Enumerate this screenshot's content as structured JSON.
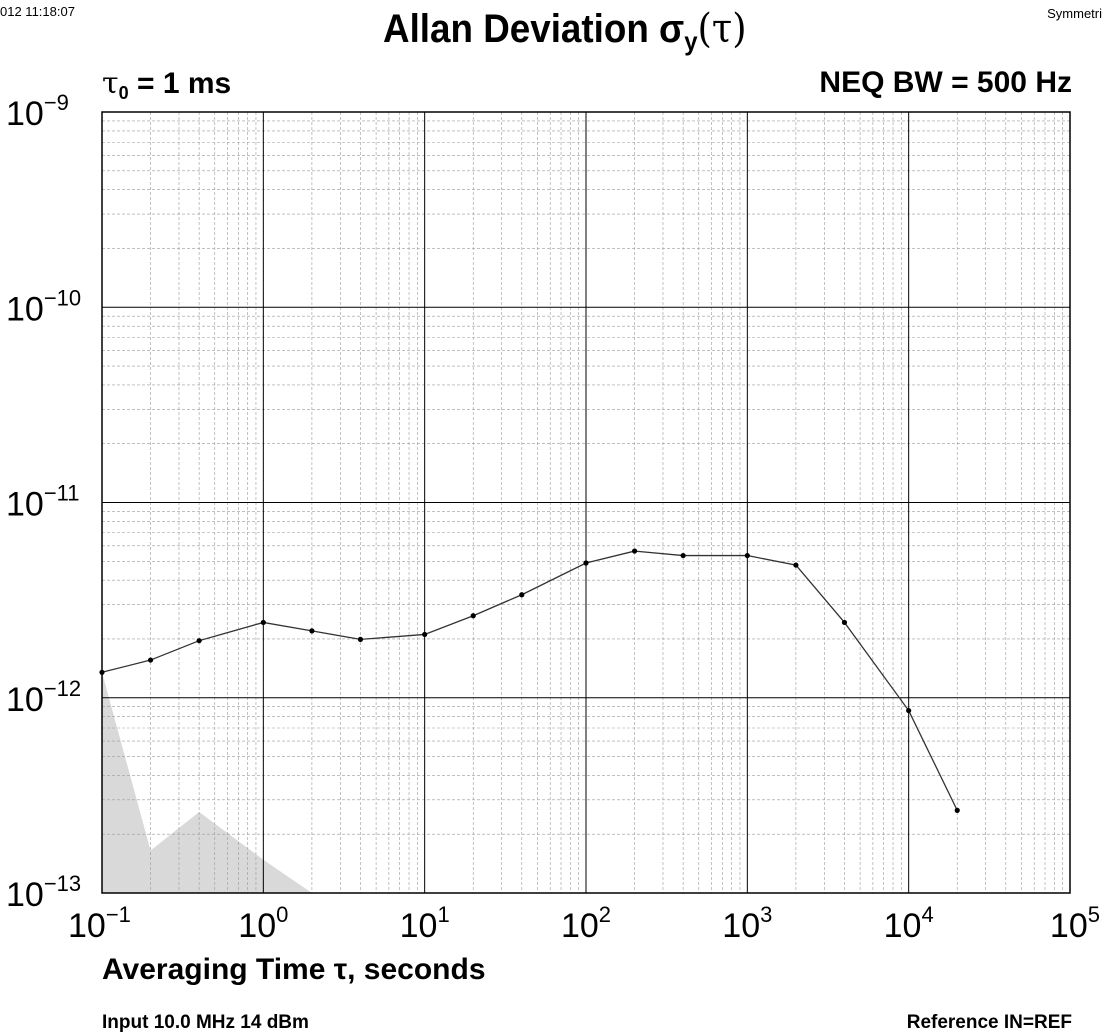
{
  "header": {
    "timestamp": "012 11:18:07",
    "vendor": "Symmetri",
    "title_main": "Allan Deviation σ",
    "title_sub": "y",
    "title_arg": "(τ)",
    "tau0_symbol": "τ",
    "tau0_sub": "0",
    "tau0_value": " = 1 ms",
    "neq_bw": "NEQ BW = 500 Hz"
  },
  "footer": {
    "xlabel": "Averaging Time τ, seconds",
    "input_info": "Input 10.0 MHz 14 dBm",
    "reference": "Reference IN=REF"
  },
  "colors": {
    "line": "#333333",
    "marker": "#000000",
    "confidence_fill": "#d9d9d9",
    "major_grid": "#000000",
    "minor_grid": "#9a9a9a"
  },
  "chart_data": {
    "type": "line",
    "title": "Allan Deviation σy(τ)",
    "xlabel": "Averaging Time τ, seconds",
    "ylabel": "",
    "x_scale": "log",
    "y_scale": "log",
    "xlim": [
      0.1,
      100000
    ],
    "ylim": [
      1e-13,
      1e-09
    ],
    "grid": true,
    "x_ticks": [
      {
        "value": 0.1,
        "base": "10",
        "exp": "−1"
      },
      {
        "value": 1,
        "base": "10",
        "exp": "0"
      },
      {
        "value": 10,
        "base": "10",
        "exp": "1"
      },
      {
        "value": 100,
        "base": "10",
        "exp": "2"
      },
      {
        "value": 1000,
        "base": "10",
        "exp": "3"
      },
      {
        "value": 10000,
        "base": "10",
        "exp": "4"
      },
      {
        "value": 100000,
        "base": "10",
        "exp": "5"
      }
    ],
    "y_ticks": [
      {
        "value": 1e-09,
        "base": "10",
        "exp": "−9"
      },
      {
        "value": 1e-10,
        "base": "10",
        "exp": "−10"
      },
      {
        "value": 1e-11,
        "base": "10",
        "exp": "−11"
      },
      {
        "value": 1e-12,
        "base": "10",
        "exp": "−12"
      },
      {
        "value": 1e-13,
        "base": "10",
        "exp": "−13"
      }
    ],
    "series": [
      {
        "x": [
          0.1,
          0.2,
          0.4,
          1,
          2,
          4,
          10,
          20,
          40,
          100,
          200,
          400,
          1000,
          2000,
          4000,
          10000,
          20000
        ],
        "y": [
          1.35e-12,
          1.56e-12,
          1.96e-12,
          2.43e-12,
          2.2e-12,
          1.99e-12,
          2.11e-12,
          2.63e-12,
          3.37e-12,
          4.9e-12,
          5.64e-12,
          5.35e-12,
          5.35e-12,
          4.78e-12,
          2.43e-12,
          8.6e-13,
          2.65e-13
        ]
      }
    ],
    "confidence_area": {
      "x": [
        0.1,
        0.2,
        0.4,
        1,
        2
      ],
      "y": [
        1.35e-12,
        1.65e-13,
        2.6e-13,
        1.48e-13,
        1e-13
      ]
    }
  }
}
